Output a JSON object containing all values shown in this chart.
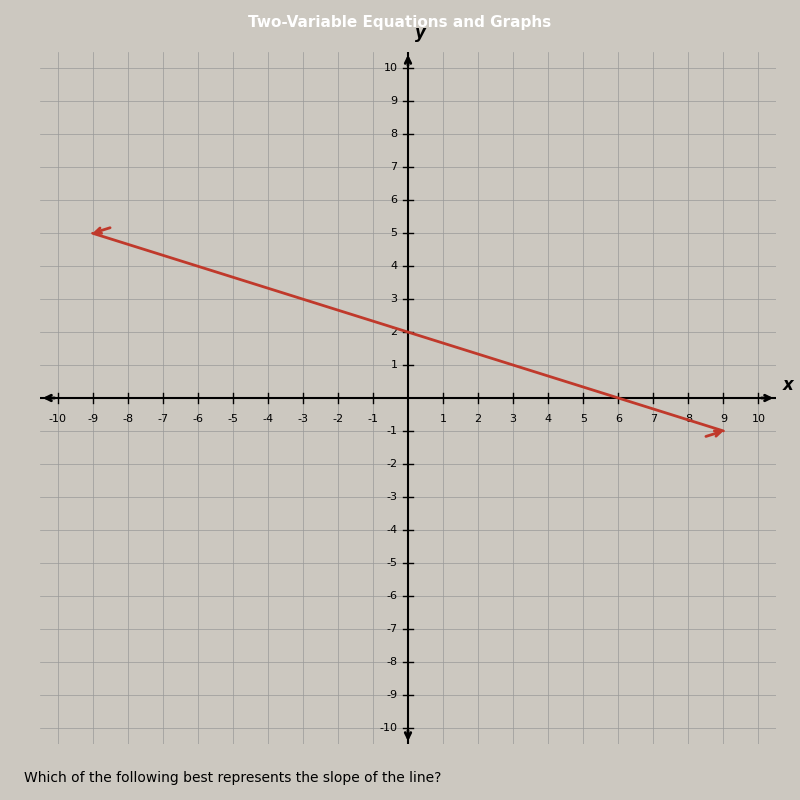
{
  "xlabel": "x",
  "ylabel": "y",
  "xlim": [
    -10.5,
    10.5
  ],
  "ylim": [
    -10.5,
    10.5
  ],
  "xticks": [
    -10,
    -9,
    -8,
    -7,
    -6,
    -5,
    -4,
    -3,
    -2,
    -1,
    1,
    2,
    3,
    4,
    5,
    6,
    7,
    8,
    9,
    10
  ],
  "yticks": [
    -10,
    -9,
    -8,
    -7,
    -6,
    -5,
    -4,
    -3,
    -2,
    -1,
    1,
    2,
    3,
    4,
    5,
    6,
    7,
    8,
    9,
    10
  ],
  "slope": -0.3333333333,
  "intercept": 2.0,
  "line_x_start": -9,
  "line_x_end": 9,
  "line_color": "#c0392b",
  "line_width": 2.0,
  "background_color": "#ccc8c0",
  "grid_color": "#999999",
  "grid_linewidth": 0.5,
  "axis_linewidth": 1.5,
  "axis_color": "#000000",
  "tick_fontsize": 8,
  "axis_label_fontsize": 12,
  "question_text": "Which of the following best represents the slope of the line?",
  "question_fontsize": 10,
  "header_text": "Two-Variable Equations and Graphs",
  "header_bg": "#3355aa",
  "header_fontsize": 11
}
